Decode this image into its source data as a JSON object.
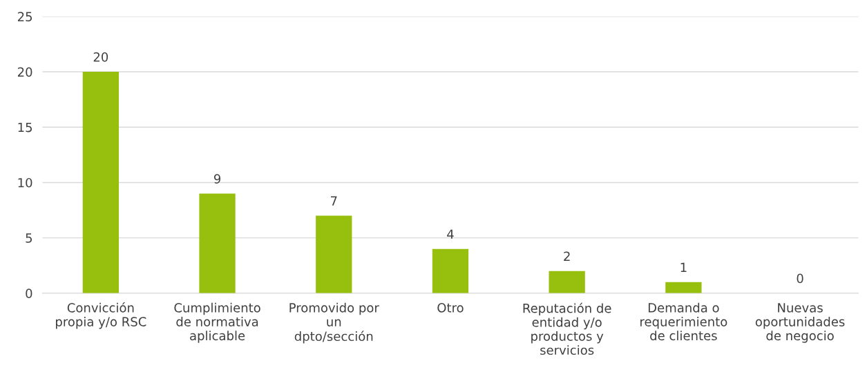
{
  "chart_data": {
    "type": "bar",
    "categories": [
      "Convicción\npropia y/o RSC",
      "Cumplimiento\nde normativa\naplicable",
      "Promovido por\nun\ndpto/sección",
      "Otro",
      "Reputación de\nentidad y/o\nproductos y\nservicios",
      "Demanda o\nrequerimiento\nde clientes",
      "Nuevas\noportunidades\nde negocio"
    ],
    "values": [
      20,
      9,
      7,
      4,
      2,
      1,
      0
    ],
    "color": "#97c00e",
    "ylim": [
      0,
      25
    ],
    "yticks": [
      0,
      5,
      10,
      15,
      20,
      25
    ],
    "grid": "y",
    "data_labels": true
  }
}
